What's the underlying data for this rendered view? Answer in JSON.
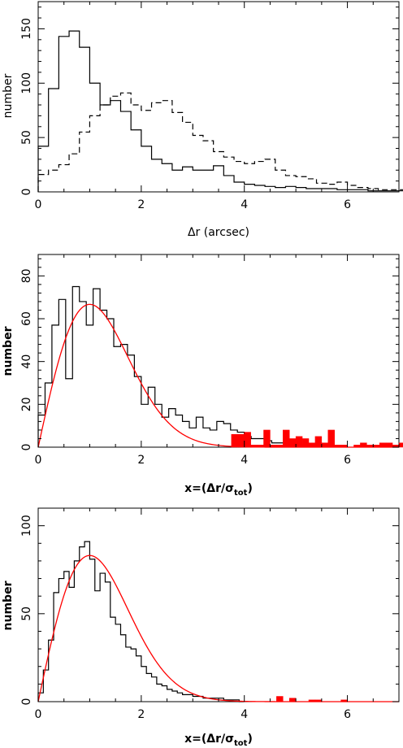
{
  "chart_data": [
    {
      "type": "histogram",
      "xlabel": "Δr (arcsec)",
      "ylabel": "number",
      "xlim": [
        0,
        7
      ],
      "ylim": [
        0,
        175
      ],
      "xticks": [
        0,
        2,
        4,
        6
      ],
      "yticks": [
        0,
        50,
        100,
        150
      ],
      "bin_width": 0.2,
      "series": [
        {
          "style": "solid",
          "color": "#000000",
          "values": [
            42,
            95,
            143,
            148,
            133,
            100,
            80,
            84,
            74,
            57,
            42,
            30,
            26,
            20,
            23,
            20,
            20,
            24,
            15,
            9,
            7,
            6,
            5,
            4,
            5,
            4,
            3,
            3,
            3,
            2,
            2,
            2,
            1,
            1,
            1,
            1,
            1,
            0,
            0,
            0
          ]
        },
        {
          "style": "dashed",
          "color": "#000000",
          "values": [
            16,
            20,
            25,
            35,
            55,
            70,
            80,
            88,
            91,
            80,
            75,
            82,
            84,
            73,
            64,
            52,
            47,
            37,
            32,
            28,
            26,
            28,
            30,
            20,
            15,
            14,
            12,
            8,
            7,
            9,
            6,
            4,
            3,
            2,
            2,
            2,
            1,
            1,
            1,
            1
          ]
        }
      ]
    },
    {
      "type": "histogram",
      "xlabel": "x=(Δr/σtot)",
      "xlabel_parts": [
        "x=(Δr/σ",
        "tot",
        ")"
      ],
      "ylabel": "number",
      "xlim": [
        0,
        7
      ],
      "ylim": [
        0,
        90
      ],
      "xticks": [
        0,
        2,
        4,
        6
      ],
      "yticks": [
        0,
        20,
        40,
        60,
        80
      ],
      "bin_width": 0.1333,
      "series": [
        {
          "style": "solid",
          "color": "#000000",
          "values": [
            15,
            30,
            57,
            69,
            32,
            75,
            68,
            57,
            74,
            64,
            60,
            47,
            48,
            43,
            33,
            20,
            28,
            20,
            14,
            18,
            15,
            12,
            9,
            14,
            9,
            8,
            12,
            11,
            8,
            7,
            5,
            4,
            4,
            3,
            2,
            2,
            1,
            1,
            1,
            1
          ]
        },
        {
          "style": "filled",
          "color": "#ff0000",
          "x_start": 3.75,
          "bin_width": 0.125,
          "values": [
            6,
            6,
            7,
            1,
            1,
            8,
            1,
            1,
            8,
            4,
            5,
            4,
            2,
            5,
            2,
            8,
            1,
            1,
            0,
            1,
            2,
            1,
            1,
            2,
            2,
            1,
            2,
            1,
            0,
            1,
            2,
            3,
            1,
            3,
            1,
            2,
            2,
            1,
            1,
            1
          ]
        },
        {
          "style": "curve",
          "color": "#ff0000",
          "model": "x*exp(-x^2/2)",
          "amplitude": 110,
          "peak_value": 66.7
        }
      ]
    },
    {
      "type": "histogram",
      "xlabel": "x=(Δr/σtot)",
      "xlabel_parts": [
        "x=(Δr/σ",
        "tot",
        ")"
      ],
      "ylabel": "number",
      "xlim": [
        0,
        7
      ],
      "ylim": [
        0,
        110
      ],
      "xticks": [
        0,
        2,
        4,
        6
      ],
      "yticks": [
        0,
        50,
        100
      ],
      "bin_width": 0.1,
      "series": [
        {
          "style": "solid",
          "color": "#000000",
          "values": [
            5,
            18,
            35,
            62,
            70,
            74,
            65,
            80,
            88,
            91,
            81,
            63,
            73,
            68,
            48,
            44,
            38,
            31,
            30,
            26,
            20,
            16,
            14,
            10,
            9,
            7,
            6,
            5,
            4,
            4,
            3,
            3,
            2,
            2,
            2,
            2,
            1,
            1,
            1,
            0
          ]
        },
        {
          "style": "filled",
          "color": "#ff0000",
          "x_start": 4.25,
          "bin_width": 0.125,
          "values": [
            0,
            0,
            0,
            3,
            0,
            2,
            0,
            0,
            1,
            1,
            0,
            0,
            0,
            1,
            0,
            0,
            0,
            0,
            0,
            0,
            0
          ]
        },
        {
          "style": "curve",
          "color": "#ff0000",
          "model": "x*exp(-x^2/2)",
          "amplitude": 137,
          "peak_value": 83
        }
      ]
    }
  ]
}
